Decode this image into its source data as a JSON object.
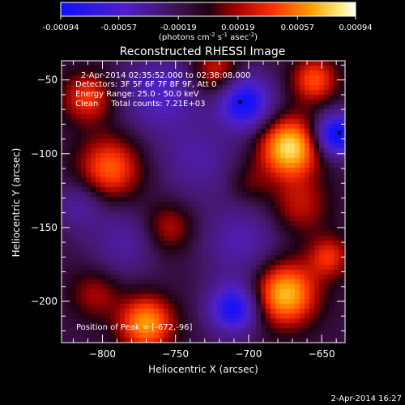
{
  "colorbar": {
    "ticks": [
      "-0.00094",
      "-0.00057",
      "-0.00019",
      "0.00019",
      "0.00057",
      "0.00094"
    ],
    "units_prefix": "(photons cm",
    "units_sup1": "-2",
    "units_mid1": " s",
    "units_sup2": "-1",
    "units_mid2": " asec",
    "units_sup3": "-2",
    "units_suffix": ")"
  },
  "chart_data": {
    "type": "heatmap",
    "title": "Reconstructed RHESSI Image",
    "xlabel": "Heliocentric X (arcsec)",
    "ylabel": "Heliocentric Y (arcsec)",
    "xlim": [
      -828,
      -634
    ],
    "ylim": [
      -228,
      -37
    ],
    "xticks": [
      -800,
      -750,
      -700,
      -650
    ],
    "yticks": [
      -50,
      -100,
      -150,
      -200
    ],
    "xtick_labels": [
      "−800",
      "−750",
      "−700",
      "−650"
    ],
    "ytick_labels": [
      "−50",
      "−100",
      "−150",
      "−200"
    ],
    "colorbar_range": [
      -0.00094,
      0.00094
    ],
    "blobs": [
      {
        "x": -703,
        "y": -65,
        "value": -0.00085,
        "sigma": 13
      },
      {
        "x": -640,
        "y": -87,
        "value": -0.00094,
        "sigma": 10
      },
      {
        "x": -760,
        "y": -60,
        "value": -0.00045,
        "sigma": 18
      },
      {
        "x": -705,
        "y": -160,
        "value": -0.00035,
        "sigma": 18
      },
      {
        "x": -710,
        "y": -205,
        "value": -0.0008,
        "sigma": 12
      },
      {
        "x": -785,
        "y": -160,
        "value": -0.0003,
        "sigma": 16
      },
      {
        "x": -815,
        "y": -135,
        "value": -0.0003,
        "sigma": 12
      },
      {
        "x": -735,
        "y": -105,
        "value": -0.0003,
        "sigma": 18
      },
      {
        "x": -810,
        "y": -62,
        "value": 0.0005,
        "sigma": 12
      },
      {
        "x": -722,
        "y": -45,
        "value": 0.00045,
        "sigma": 12
      },
      {
        "x": -672,
        "y": -96,
        "value": 0.00094,
        "sigma": 14
      },
      {
        "x": -655,
        "y": -50,
        "value": 0.00055,
        "sigma": 11
      },
      {
        "x": -795,
        "y": -110,
        "value": 0.0006,
        "sigma": 15
      },
      {
        "x": -665,
        "y": -135,
        "value": 0.00035,
        "sigma": 14
      },
      {
        "x": -675,
        "y": -195,
        "value": 0.00085,
        "sigma": 15
      },
      {
        "x": -645,
        "y": -170,
        "value": 0.00045,
        "sigma": 10
      },
      {
        "x": -770,
        "y": -215,
        "value": 0.00075,
        "sigma": 13
      },
      {
        "x": -755,
        "y": -150,
        "value": 0.00035,
        "sigma": 12
      },
      {
        "x": -805,
        "y": -195,
        "value": 0.0003,
        "sigma": 12
      },
      {
        "x": -700,
        "y": -120,
        "value": 0.0002,
        "sigma": 10
      }
    ],
    "peak_markers": [
      {
        "x": -706,
        "y": -65
      },
      {
        "x": -638,
        "y": -86
      }
    ]
  },
  "annotations": {
    "time_range": "2-Apr-2014 02:35:52.000 to 02:38:08.000",
    "detectors": "Detectors: 3F 5F 6F 7F 8F 9F, Att 0",
    "energy": "Energy Range: 25.0 - 50.0 keV",
    "clean": "Clean     Total counts: 7.21E+03",
    "peak": "Position of Peak = [-672,-96]"
  },
  "footer": {
    "timestamp": "2-Apr-2014 16:27"
  },
  "colors": {
    "negative_min": "#0000ff",
    "neutral": "#220022",
    "positive_max": "#ffffff",
    "mid_red": "#ff3300",
    "orange": "#ff9900"
  }
}
